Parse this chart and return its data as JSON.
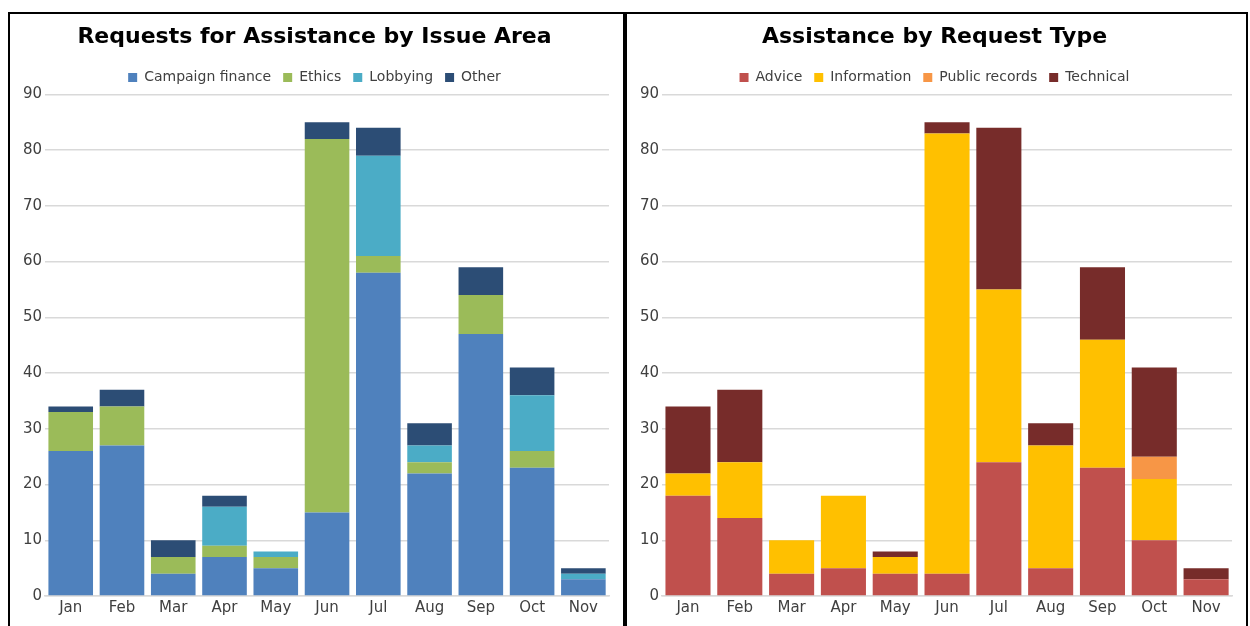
{
  "chart_data": [
    {
      "type": "bar",
      "title": "Requests for Assistance by Issue Area",
      "stacked": true,
      "legend": "top",
      "grid": "y",
      "categories": [
        "Jan",
        "Feb",
        "Mar",
        "Apr",
        "May",
        "Jun",
        "Jul",
        "Aug",
        "Sep",
        "Oct",
        "Nov"
      ],
      "ylim": [
        0,
        90
      ],
      "yticks": [
        0,
        10,
        20,
        30,
        40,
        50,
        60,
        70,
        80,
        90
      ],
      "series": [
        {
          "name": "Campaign finance",
          "color": "#4f81bd",
          "values": [
            26,
            27,
            4,
            7,
            5,
            15,
            58,
            22,
            47,
            23,
            3
          ]
        },
        {
          "name": "Ethics",
          "color": "#9bbb59",
          "values": [
            7,
            7,
            3,
            2,
            2,
            67,
            3,
            2,
            7,
            3,
            0
          ]
        },
        {
          "name": "Lobbying",
          "color": "#4bacc6",
          "values": [
            0,
            0,
            0,
            7,
            1,
            0,
            18,
            3,
            0,
            10,
            1
          ]
        },
        {
          "name": "Other",
          "color": "#2c4d75",
          "values": [
            1,
            3,
            3,
            2,
            0,
            3,
            5,
            4,
            5,
            5,
            1
          ]
        }
      ]
    },
    {
      "type": "bar",
      "title": "Assistance by Request Type",
      "stacked": true,
      "legend": "top",
      "grid": "y",
      "categories": [
        "Jan",
        "Feb",
        "Mar",
        "Apr",
        "May",
        "Jun",
        "Jul",
        "Aug",
        "Sep",
        "Oct",
        "Nov"
      ],
      "ylim": [
        0,
        90
      ],
      "yticks": [
        0,
        10,
        20,
        30,
        40,
        50,
        60,
        70,
        80,
        90
      ],
      "series": [
        {
          "name": "Advice",
          "color": "#c0504d",
          "values": [
            18,
            14,
            4,
            5,
            4,
            4,
            24,
            5,
            23,
            10,
            3
          ]
        },
        {
          "name": "Information",
          "color": "#ffc000",
          "values": [
            4,
            10,
            6,
            13,
            3,
            79,
            31,
            22,
            23,
            11,
            0
          ]
        },
        {
          "name": "Public records",
          "color": "#f79646",
          "values": [
            0,
            0,
            0,
            0,
            0,
            0,
            0,
            0,
            0,
            4,
            0
          ]
        },
        {
          "name": "Technical",
          "color": "#772c2a",
          "values": [
            12,
            13,
            0,
            0,
            1,
            2,
            29,
            4,
            13,
            16,
            2
          ]
        }
      ]
    }
  ]
}
